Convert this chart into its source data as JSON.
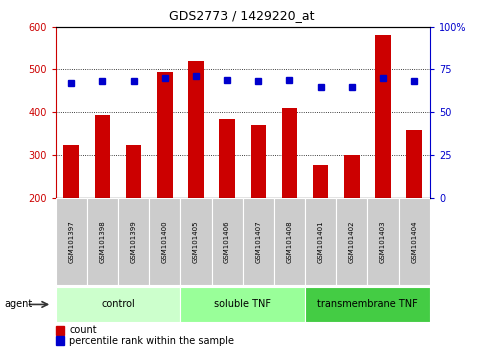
{
  "title": "GDS2773 / 1429220_at",
  "samples": [
    "GSM101397",
    "GSM101398",
    "GSM101399",
    "GSM101400",
    "GSM101405",
    "GSM101406",
    "GSM101407",
    "GSM101408",
    "GSM101401",
    "GSM101402",
    "GSM101403",
    "GSM101404"
  ],
  "counts": [
    325,
    395,
    325,
    495,
    520,
    385,
    370,
    410,
    278,
    300,
    580,
    358
  ],
  "percentiles": [
    67,
    68,
    68,
    70,
    71,
    69,
    68,
    69,
    65,
    65,
    70,
    68
  ],
  "groups": [
    {
      "label": "control",
      "start": 0,
      "end": 4,
      "color": "#ccffcc"
    },
    {
      "label": "soluble TNF",
      "start": 4,
      "end": 8,
      "color": "#99ff99"
    },
    {
      "label": "transmembrane TNF",
      "start": 8,
      "end": 12,
      "color": "#44cc44"
    }
  ],
  "ylim_left": [
    200,
    600
  ],
  "ylim_right": [
    0,
    100
  ],
  "yticks_left": [
    200,
    300,
    400,
    500,
    600
  ],
  "yticks_right": [
    0,
    25,
    50,
    75,
    100
  ],
  "bar_color": "#cc0000",
  "dot_color": "#0000cc",
  "bar_bottom": 200,
  "agent_label": "agent",
  "legend_count_label": "count",
  "legend_pct_label": "percentile rank within the sample",
  "tick_label_color_left": "#cc0000",
  "tick_label_color_right": "#0000cc",
  "grid_color": "#000000",
  "sample_box_color": "#cccccc",
  "title_fontsize": 9,
  "tick_fontsize": 7,
  "sample_fontsize": 5,
  "group_fontsize": 7,
  "legend_fontsize": 7
}
